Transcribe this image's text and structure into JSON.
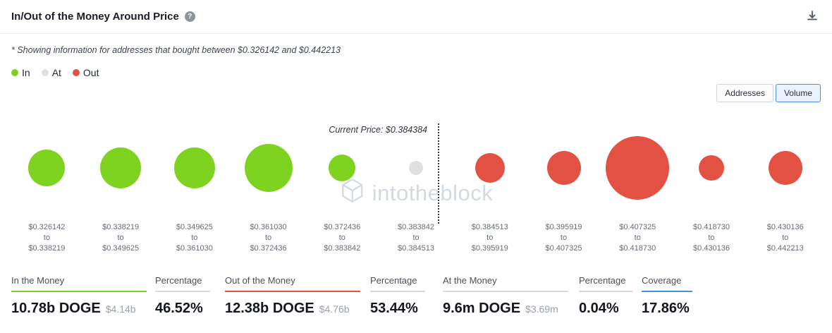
{
  "header": {
    "title": "In/Out of the Money Around Price"
  },
  "subtitle": "* Showing information for addresses that bought between $0.326142 and $0.442213",
  "legend": {
    "items": [
      {
        "label": "In",
        "color": "#7ed321"
      },
      {
        "label": "At",
        "color": "#e0e0e0"
      },
      {
        "label": "Out",
        "color": "#e25141"
      }
    ]
  },
  "view_toggle": {
    "options": [
      {
        "label": "Addresses",
        "selected": false
      },
      {
        "label": "Volume",
        "selected": true
      }
    ]
  },
  "chart_data": {
    "type": "scatter",
    "subtype": "bubble",
    "title": "In/Out of the Money Around Price",
    "watermark": "intotheblock",
    "current_price": "$0.384384",
    "current_price_label": "Current Price: $0.384384",
    "to_label": "to",
    "colors": {
      "in": "#7ed321",
      "at": "#e0e0e0",
      "out": "#e25141"
    },
    "bubbles": [
      {
        "from": "$0.326142",
        "to": "$0.338219",
        "status": "in",
        "diameter": 52
      },
      {
        "from": "$0.338219",
        "to": "$0.349625",
        "status": "in",
        "diameter": 58
      },
      {
        "from": "$0.349625",
        "to": "$0.361030",
        "status": "in",
        "diameter": 58
      },
      {
        "from": "$0.361030",
        "to": "$0.372436",
        "status": "in",
        "diameter": 68
      },
      {
        "from": "$0.372436",
        "to": "$0.383842",
        "status": "in",
        "diameter": 38
      },
      {
        "from": "$0.383842",
        "to": "$0.384513",
        "status": "at",
        "diameter": 20
      },
      {
        "from": "$0.384513",
        "to": "$0.395919",
        "status": "out",
        "diameter": 42
      },
      {
        "from": "$0.395919",
        "to": "$0.407325",
        "status": "out",
        "diameter": 48
      },
      {
        "from": "$0.407325",
        "to": "$0.418730",
        "status": "out",
        "diameter": 90
      },
      {
        "from": "$0.418730",
        "to": "$0.430136",
        "status": "out",
        "diameter": 36
      },
      {
        "from": "$0.430136",
        "to": "$0.442213",
        "status": "out",
        "diameter": 48
      }
    ]
  },
  "stats": [
    {
      "label": "In the Money",
      "underline": "#7ed321",
      "value": "10.78b DOGE",
      "sub": "$4.14b"
    },
    {
      "label": "Percentage",
      "underline": "#d7dade",
      "value": "46.52%",
      "sub": ""
    },
    {
      "label": "Out of the Money",
      "underline": "#e25141",
      "value": "12.38b DOGE",
      "sub": "$4.76b"
    },
    {
      "label": "Percentage",
      "underline": "#d7dade",
      "value": "53.44%",
      "sub": ""
    },
    {
      "label": "At the Money",
      "underline": "#d7dade",
      "value": "9.6m DOGE",
      "sub": "$3.69m"
    },
    {
      "label": "Percentage",
      "underline": "#d7dade",
      "value": "0.04%",
      "sub": ""
    },
    {
      "label": "Coverage",
      "underline": "#4a90e2",
      "value": "17.86%",
      "sub": ""
    }
  ]
}
